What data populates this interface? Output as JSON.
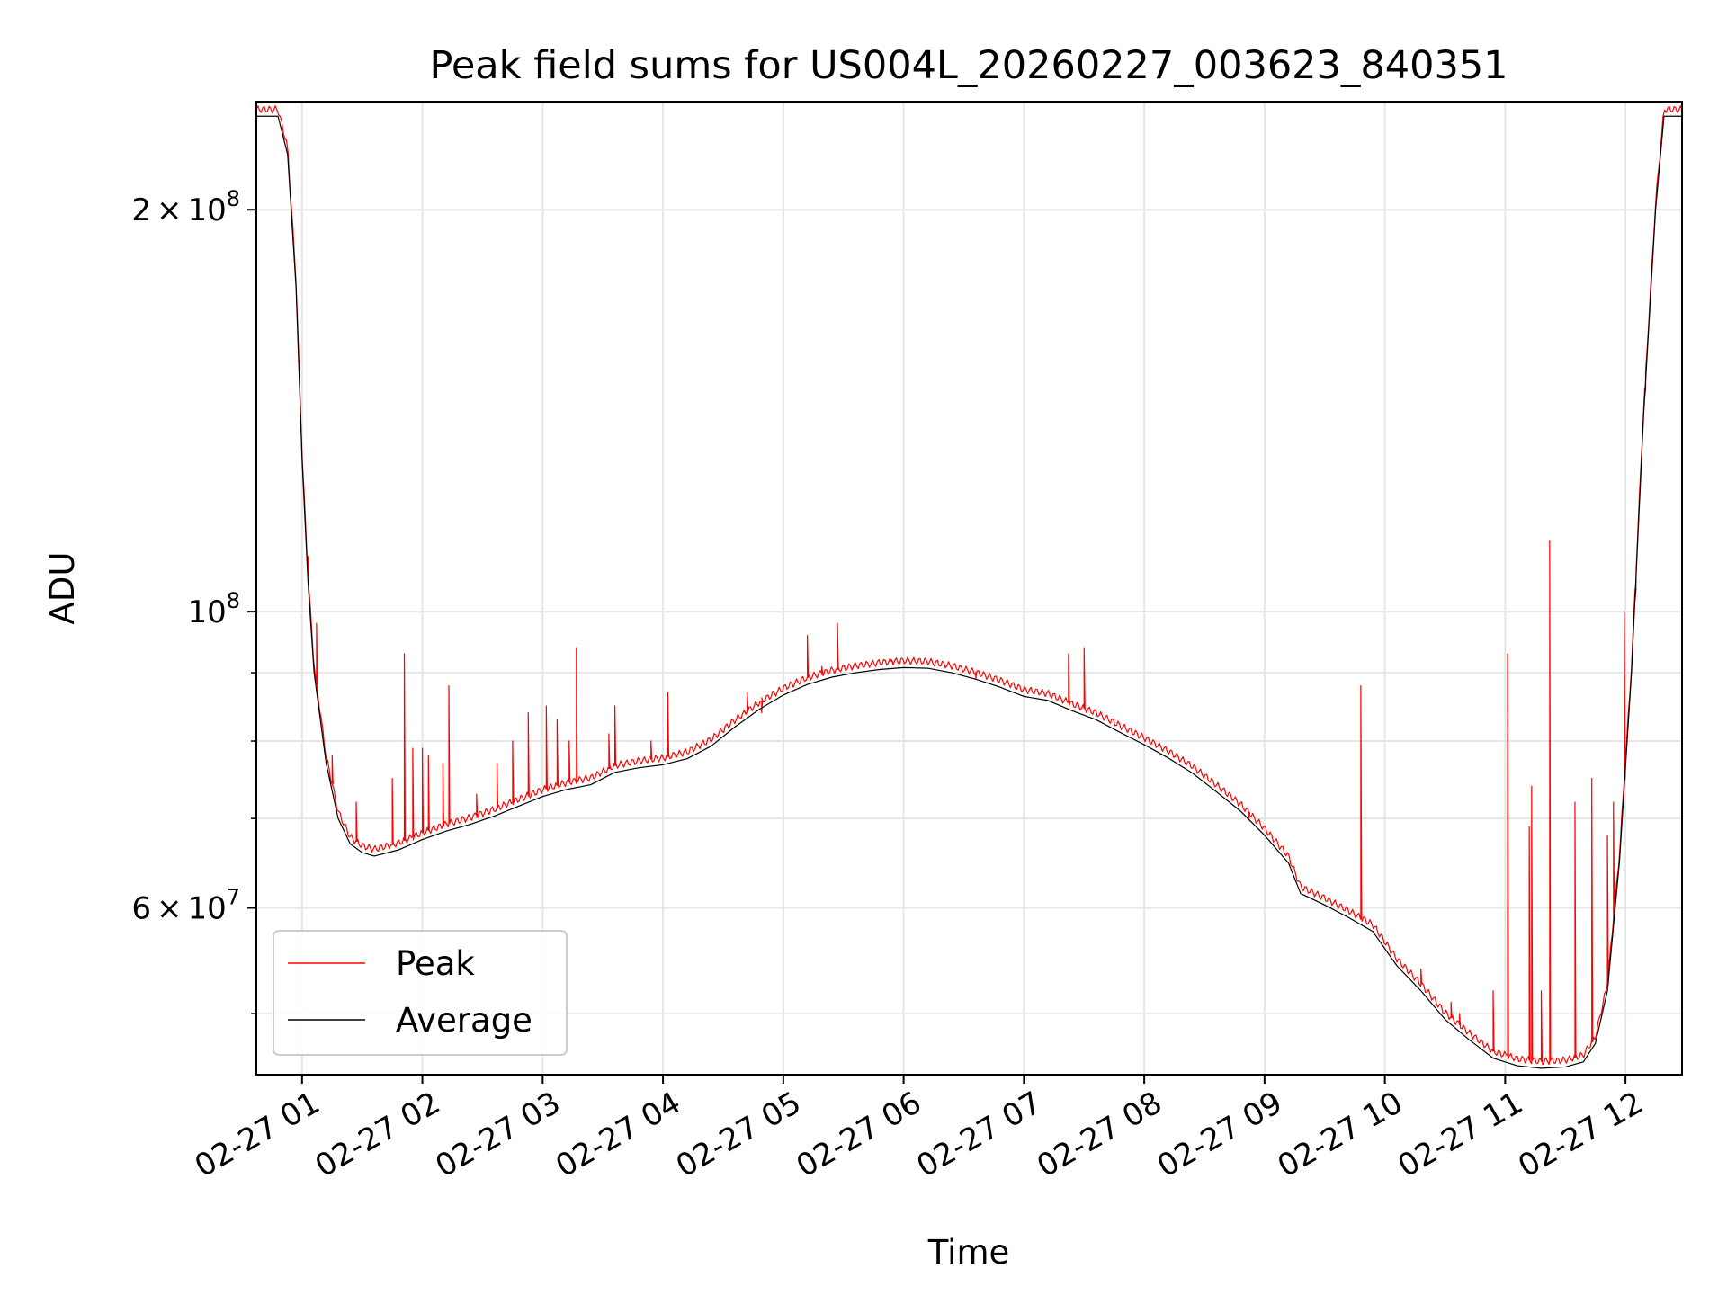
{
  "chart_data": {
    "type": "line",
    "title": "Peak field sums for US004L_20260227_003623_840351",
    "xlabel": "Time",
    "ylabel": "ADU",
    "x_unit": "hours on 2026-02-27",
    "xlim": [
      0.62,
      12.47
    ],
    "ylim": [
      45000000,
      241000000
    ],
    "yscale": "log",
    "grid": true,
    "legend_position": "lower-left",
    "x_ticks": [
      {
        "value": 1,
        "label": "02-27 01"
      },
      {
        "value": 2,
        "label": "02-27 02"
      },
      {
        "value": 3,
        "label": "02-27 03"
      },
      {
        "value": 4,
        "label": "02-27 04"
      },
      {
        "value": 5,
        "label": "02-27 05"
      },
      {
        "value": 6,
        "label": "02-27 06"
      },
      {
        "value": 7,
        "label": "02-27 07"
      },
      {
        "value": 8,
        "label": "02-27 08"
      },
      {
        "value": 9,
        "label": "02-27 09"
      },
      {
        "value": 10,
        "label": "02-27 10"
      },
      {
        "value": 11,
        "label": "02-27 11"
      },
      {
        "value": 12,
        "label": "02-27 12"
      }
    ],
    "y_major_ticks": [
      {
        "value": 60000000,
        "mantissa": "6",
        "times": "×",
        "base": "10",
        "exp": "7"
      },
      {
        "value": 100000000,
        "mantissa": "",
        "times": "",
        "base": "10",
        "exp": "8"
      },
      {
        "value": 200000000,
        "mantissa": "2",
        "times": "×",
        "base": "10",
        "exp": "8"
      }
    ],
    "y_minor_ticks": [
      50000000,
      70000000,
      80000000,
      90000000,
      300000000
    ],
    "series": [
      {
        "name": "Peak",
        "color": "#ff0000",
        "width": 1.2,
        "baseline_offset": 1.012,
        "spikes": [
          [
            1.05,
            110000000
          ],
          [
            1.12,
            98000000
          ],
          [
            1.25,
            78000000
          ],
          [
            1.45,
            72000000
          ],
          [
            1.75,
            75000000
          ],
          [
            1.85,
            93000000
          ],
          [
            1.92,
            79000000
          ],
          [
            2.0,
            79000000
          ],
          [
            2.05,
            78000000
          ],
          [
            2.17,
            77000000
          ],
          [
            2.22,
            88000000
          ],
          [
            2.45,
            73000000
          ],
          [
            2.62,
            77000000
          ],
          [
            2.75,
            80000000
          ],
          [
            2.88,
            84000000
          ],
          [
            3.03,
            85000000
          ],
          [
            3.12,
            83000000
          ],
          [
            3.22,
            80000000
          ],
          [
            3.28,
            94000000
          ],
          [
            3.55,
            81000000
          ],
          [
            3.6,
            85000000
          ],
          [
            3.9,
            80000000
          ],
          [
            4.04,
            87000000
          ],
          [
            4.7,
            87000000
          ],
          [
            4.82,
            84000000
          ],
          [
            5.2,
            96000000
          ],
          [
            5.32,
            91000000
          ],
          [
            5.45,
            98000000
          ],
          [
            5.9,
            92000000
          ],
          [
            6.6,
            89000000
          ],
          [
            7.37,
            93000000
          ],
          [
            7.5,
            94000000
          ],
          [
            8.87,
            70000000
          ],
          [
            9.8,
            88000000
          ],
          [
            10.3,
            54000000
          ],
          [
            10.55,
            51000000
          ],
          [
            10.62,
            50000000
          ],
          [
            10.9,
            52000000
          ],
          [
            11.02,
            93000000
          ],
          [
            11.2,
            69000000
          ],
          [
            11.22,
            74000000
          ],
          [
            11.3,
            52000000
          ],
          [
            11.37,
            113000000
          ],
          [
            11.58,
            72000000
          ],
          [
            11.72,
            75000000
          ],
          [
            11.85,
            68000000
          ],
          [
            11.9,
            72000000
          ],
          [
            11.99,
            100000000
          ],
          [
            12.08,
            102000000
          ],
          [
            12.16,
            145000000
          ]
        ]
      },
      {
        "name": "Average",
        "color": "#000000",
        "width": 1.2,
        "points": [
          [
            0.62,
            235000000
          ],
          [
            0.8,
            235000000
          ],
          [
            0.88,
            220000000
          ],
          [
            0.95,
            175000000
          ],
          [
            1.0,
            130000000
          ],
          [
            1.05,
            105000000
          ],
          [
            1.1,
            90000000
          ],
          [
            1.2,
            77000000
          ],
          [
            1.3,
            70000000
          ],
          [
            1.4,
            67000000
          ],
          [
            1.5,
            66000000
          ],
          [
            1.6,
            65600000
          ],
          [
            1.8,
            66300000
          ],
          [
            2.0,
            67500000
          ],
          [
            2.2,
            68500000
          ],
          [
            2.4,
            69300000
          ],
          [
            2.6,
            70300000
          ],
          [
            2.8,
            71500000
          ],
          [
            3.0,
            72700000
          ],
          [
            3.2,
            73600000
          ],
          [
            3.4,
            74200000
          ],
          [
            3.6,
            75800000
          ],
          [
            3.8,
            76400000
          ],
          [
            4.0,
            76800000
          ],
          [
            4.2,
            77600000
          ],
          [
            4.4,
            79300000
          ],
          [
            4.6,
            82000000
          ],
          [
            4.8,
            84500000
          ],
          [
            5.0,
            86600000
          ],
          [
            5.2,
            88200000
          ],
          [
            5.4,
            89300000
          ],
          [
            5.6,
            90000000
          ],
          [
            5.8,
            90500000
          ],
          [
            6.0,
            90800000
          ],
          [
            6.2,
            90700000
          ],
          [
            6.4,
            90000000
          ],
          [
            6.6,
            89000000
          ],
          [
            6.8,
            87800000
          ],
          [
            7.0,
            86400000
          ],
          [
            7.2,
            85800000
          ],
          [
            7.4,
            84300000
          ],
          [
            7.6,
            83000000
          ],
          [
            7.8,
            81200000
          ],
          [
            8.0,
            79500000
          ],
          [
            8.2,
            77700000
          ],
          [
            8.4,
            75700000
          ],
          [
            8.6,
            73300000
          ],
          [
            8.8,
            70900000
          ],
          [
            9.0,
            68000000
          ],
          [
            9.2,
            64800000
          ],
          [
            9.3,
            61500000
          ],
          [
            9.5,
            60300000
          ],
          [
            9.7,
            59000000
          ],
          [
            9.9,
            57600000
          ],
          [
            10.1,
            54300000
          ],
          [
            10.3,
            52000000
          ],
          [
            10.5,
            49500000
          ],
          [
            10.7,
            47800000
          ],
          [
            10.9,
            46300000
          ],
          [
            11.1,
            45700000
          ],
          [
            11.3,
            45500000
          ],
          [
            11.5,
            45600000
          ],
          [
            11.65,
            46000000
          ],
          [
            11.75,
            47500000
          ],
          [
            11.85,
            52000000
          ],
          [
            11.95,
            65000000
          ],
          [
            12.05,
            90000000
          ],
          [
            12.15,
            140000000
          ],
          [
            12.25,
            200000000
          ],
          [
            12.32,
            235000000
          ],
          [
            12.47,
            235000000
          ]
        ]
      }
    ]
  }
}
